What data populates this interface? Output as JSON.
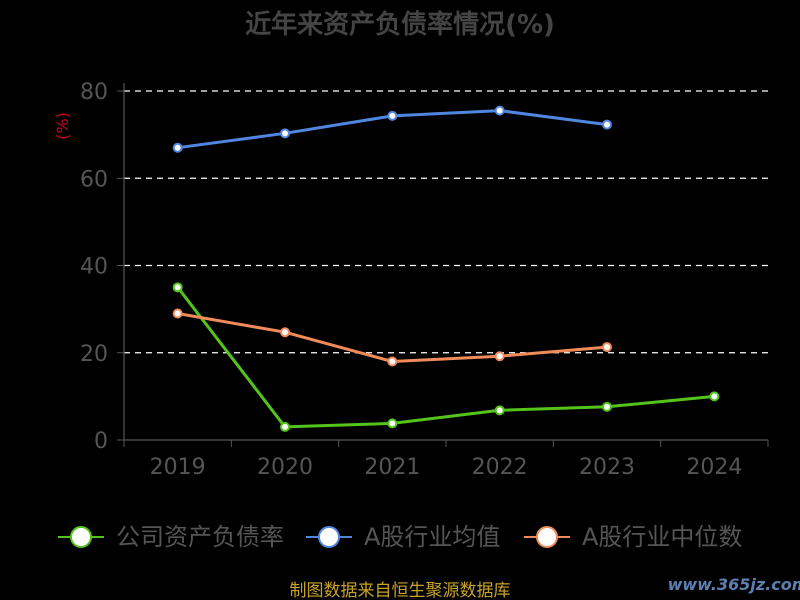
{
  "chart_data": {
    "type": "line",
    "title": "近年来资产负债率情况(%)",
    "ylabel": "(%)",
    "xlabel": "",
    "ylim": [
      0,
      80
    ],
    "yticks": [
      0,
      20,
      40,
      60,
      80
    ],
    "categories": [
      "2019",
      "2020",
      "2021",
      "2022",
      "2023",
      "2024"
    ],
    "grid": true,
    "legend": "bottom",
    "series": [
      {
        "name": "公司资产负债率",
        "color": "#52c41a",
        "values": [
          35.0,
          3.0,
          3.8,
          6.8,
          7.6,
          10.0
        ]
      },
      {
        "name": "A股行业均值",
        "color": "#4f86e0",
        "values": [
          67.0,
          70.3,
          74.3,
          75.5,
          72.3,
          null
        ]
      },
      {
        "name": "A股行业中位数",
        "color": "#f28b5a",
        "values": [
          29.0,
          24.7,
          18.0,
          19.2,
          21.3,
          null
        ]
      }
    ]
  },
  "footer": {
    "source": "制图数据来自恒生聚源数据库",
    "watermark": "www.365jz.com"
  }
}
